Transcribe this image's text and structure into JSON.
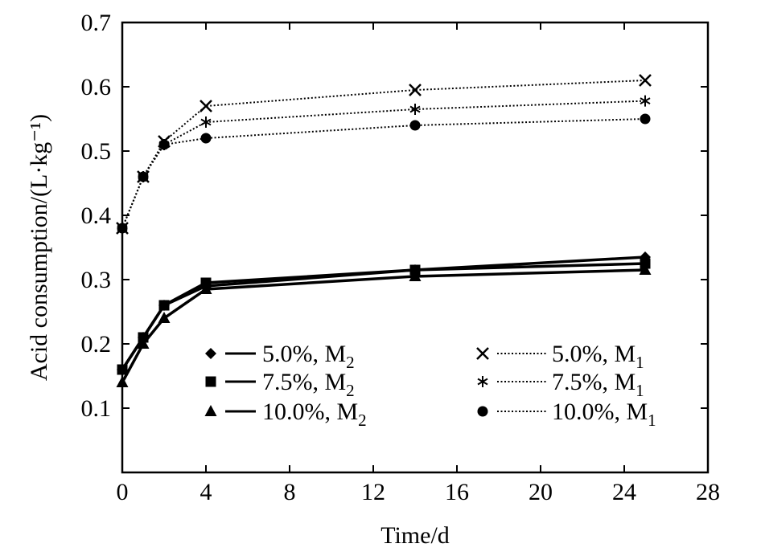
{
  "chart_data": {
    "type": "line",
    "xlabel": "Time/d",
    "ylabel": "Acid consumption/(L·kg⁻¹)",
    "xlim": [
      0,
      28
    ],
    "ylim": [
      0,
      0.7
    ],
    "xticks": [
      "0",
      "4",
      "8",
      "12",
      "16",
      "20",
      "24",
      "28"
    ],
    "yticks": [
      "0.1",
      "0.2",
      "0.3",
      "0.4",
      "0.5",
      "0.6",
      "0.7"
    ],
    "grid": false,
    "legend_position": "bottom",
    "series": [
      {
        "name": "5.0%, M2",
        "subscript": "2",
        "group": "M2",
        "marker": "diamond",
        "style": "solid",
        "x": [
          0,
          1,
          2,
          4,
          14,
          25
        ],
        "y": [
          0.16,
          0.21,
          0.26,
          0.29,
          0.315,
          0.335
        ]
      },
      {
        "name": "7.5%, M2",
        "subscript": "2",
        "group": "M2",
        "marker": "square",
        "style": "solid",
        "x": [
          0,
          1,
          2,
          4,
          14,
          25
        ],
        "y": [
          0.16,
          0.21,
          0.26,
          0.295,
          0.315,
          0.325
        ]
      },
      {
        "name": "10.0%, M2",
        "subscript": "2",
        "group": "M2",
        "marker": "triangle",
        "style": "solid",
        "x": [
          0,
          1,
          2,
          4,
          14,
          25
        ],
        "y": [
          0.14,
          0.2,
          0.24,
          0.285,
          0.305,
          0.315
        ]
      },
      {
        "name": "5.0%, M1",
        "subscript": "1",
        "group": "M1",
        "marker": "x",
        "style": "dotted",
        "x": [
          0,
          1,
          2,
          4,
          14,
          25
        ],
        "y": [
          0.38,
          0.46,
          0.515,
          0.57,
          0.595,
          0.61
        ]
      },
      {
        "name": "7.5%, M1",
        "subscript": "1",
        "group": "M1",
        "marker": "star",
        "style": "dotted",
        "x": [
          0,
          1,
          2,
          4,
          14,
          25
        ],
        "y": [
          0.38,
          0.46,
          0.51,
          0.545,
          0.565,
          0.578
        ]
      },
      {
        "name": "10.0%, M1",
        "subscript": "1",
        "group": "M1",
        "marker": "circle",
        "style": "dotted",
        "x": [
          0,
          1,
          2,
          4,
          14,
          25
        ],
        "y": [
          0.38,
          0.46,
          0.51,
          0.52,
          0.54,
          0.55
        ]
      }
    ]
  }
}
